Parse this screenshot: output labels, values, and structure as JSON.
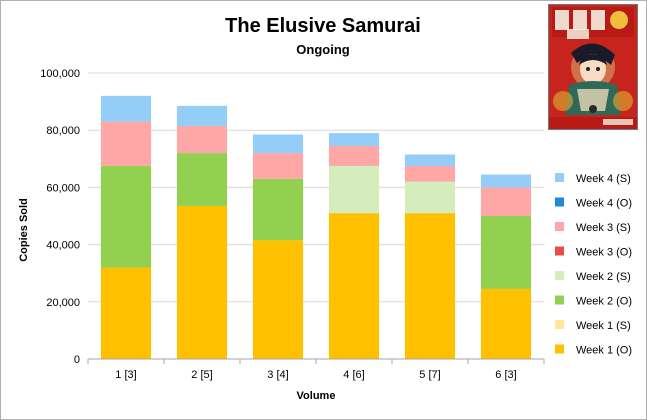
{
  "chart_data": {
    "type": "bar",
    "stacked": true,
    "title": "The Elusive Samurai",
    "subtitle": "Ongoing",
    "xlabel": "Volume",
    "ylabel": "Copies Sold",
    "ylim": [
      0,
      100000
    ],
    "yticks": [
      "0",
      "20,000",
      "40,000",
      "60,000",
      "80,000",
      "100,000"
    ],
    "categories": [
      "1 [3]",
      "2 [5]",
      "3 [4]",
      "4 [6]",
      "5 [7]",
      "6 [3]"
    ],
    "series": [
      {
        "name": "Week 1 (O)",
        "color": "#FFC000",
        "values": [
          32000,
          53500,
          41500,
          51000,
          51000,
          24500
        ]
      },
      {
        "name": "Week 1 (S)",
        "color": "#FFE699",
        "values": [
          0,
          0,
          0,
          0,
          0,
          0
        ]
      },
      {
        "name": "Week 2 (O)",
        "color": "#92D050",
        "values": [
          35500,
          18500,
          21500,
          0,
          0,
          25500
        ]
      },
      {
        "name": "Week 2 (S)",
        "color": "#D5EDBD",
        "values": [
          0,
          0,
          0,
          16500,
          11000,
          0
        ]
      },
      {
        "name": "Week 3 (O)",
        "color": "#E84C4C",
        "values": [
          0,
          0,
          0,
          0,
          0,
          0
        ]
      },
      {
        "name": "Week 3 (S)",
        "color": "#FFA7A7",
        "values": [
          15500,
          9500,
          9000,
          7000,
          5500,
          10000
        ]
      },
      {
        "name": "Week 4 (O)",
        "color": "#1E8BD8",
        "values": [
          0,
          0,
          0,
          0,
          0,
          0
        ]
      },
      {
        "name": "Week 4 (S)",
        "color": "#93CDF8",
        "values": [
          9000,
          7000,
          6500,
          4500,
          4000,
          4500
        ]
      }
    ],
    "legend_position": "right",
    "grid": "horizontal"
  }
}
